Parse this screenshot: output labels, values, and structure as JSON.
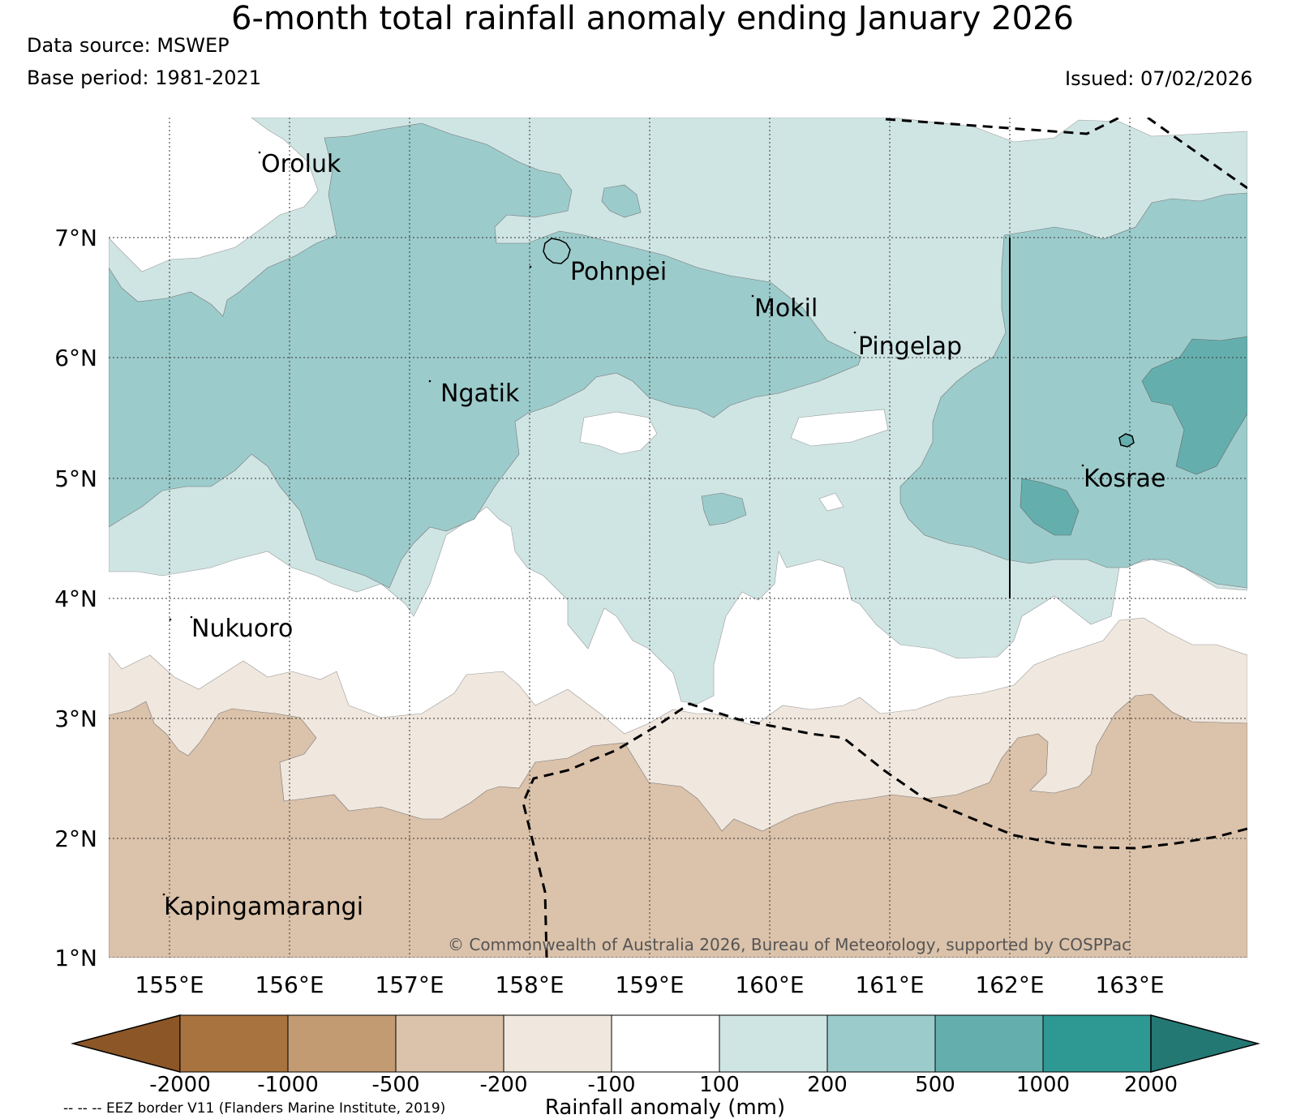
{
  "title": "6-month total rainfall anomaly ending January 2026",
  "data_source": "Data source: MSWEP",
  "base_period": "Base period: 1981-2021",
  "issued": "Issued: 07/02/2026",
  "lat_labels": [
    "7°N",
    "6°N",
    "5°N",
    "4°N",
    "3°N",
    "2°N",
    "1°N"
  ],
  "lon_labels": [
    "155°E",
    "156°E",
    "157°E",
    "158°E",
    "159°E",
    "160°E",
    "161°E",
    "162°E",
    "163°E"
  ],
  "islands": [
    "Oroluk",
    "Pohnpei",
    "Mokil",
    "Pingelap",
    "Ngatik",
    "Kosrae",
    "Nukuoro",
    "Kapingamarangi"
  ],
  "copyright": "© Commonwealth of Australia 2026, Bureau of Meteorology, supported by COSPPac",
  "colorbar": {
    "title": "Rainfall anomaly (mm)",
    "ticks": [
      "-2000",
      "-1000",
      "-500",
      "-200",
      "-100",
      "100",
      "200",
      "500",
      "1000",
      "2000"
    ],
    "colors": [
      "#8c5627",
      "#a8733e",
      "#c39b72",
      "#dbc2aa",
      "#f0e7de",
      "#ffffff",
      "#cfe5e4",
      "#9ccbcb",
      "#64afae",
      "#2e9893",
      "#247874"
    ]
  },
  "eez_note": "-- -- -- EEZ border V11 (Flanders Marine Institute, 2019)",
  "colors": {
    "dry2": "#dbc2aa",
    "dry1": "#f0e7de",
    "wet1": "#cfe5e4",
    "wet2": "#9ccbcb",
    "wet3": "#64afae"
  }
}
